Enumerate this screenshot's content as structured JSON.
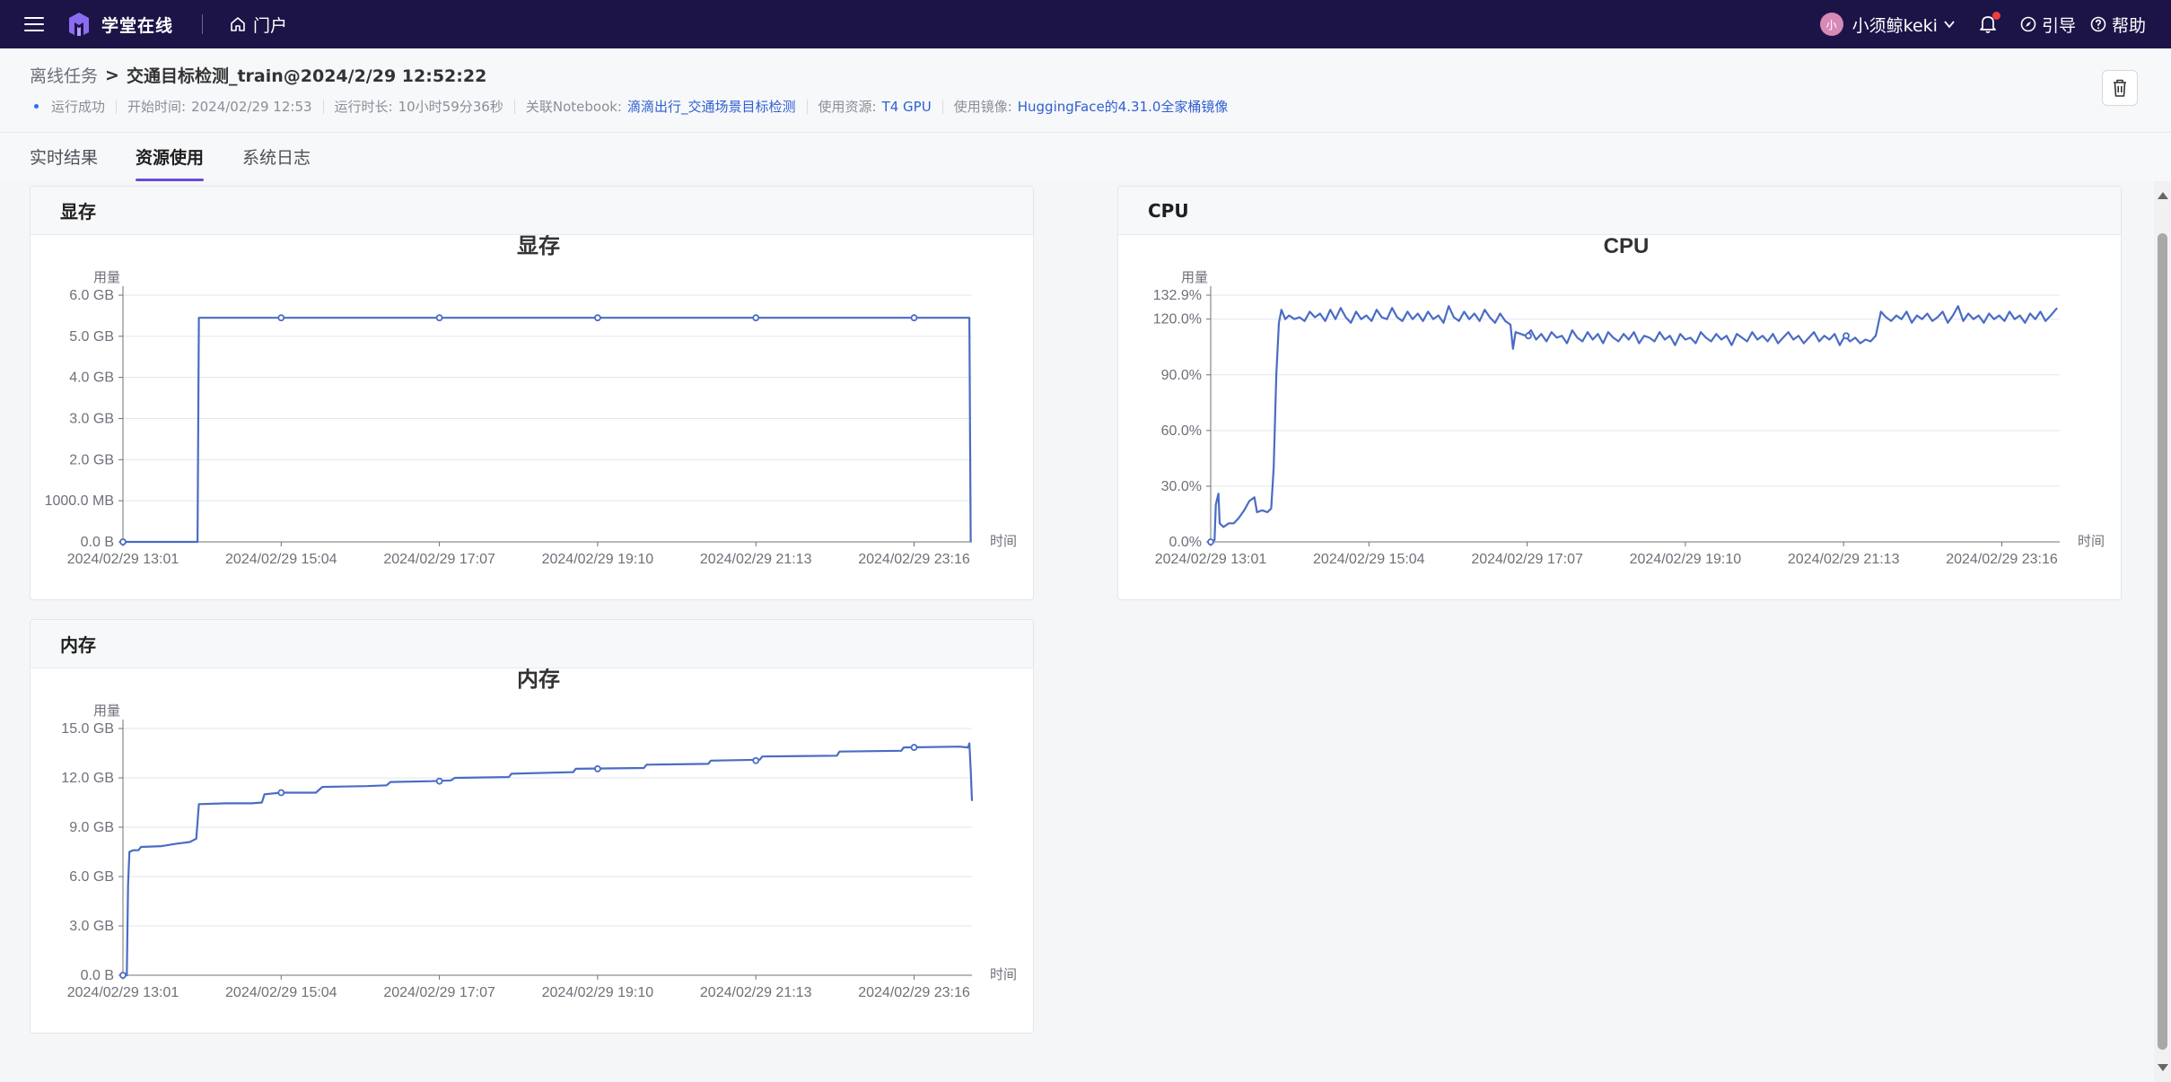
{
  "topbar": {
    "logo_text": "学堂在线",
    "portal_label": "门户",
    "avatar_text": "小",
    "username": "小须鲸keki",
    "guide_label": "引导",
    "help_label": "帮助"
  },
  "breadcrumb": {
    "parent": "离线任务",
    "separator": ">",
    "current": "交通目标检测_train@2024/2/29 12:52:22"
  },
  "meta": {
    "status": "运行成功",
    "start_label": "开始时间:",
    "start_value": "2024/02/29 12:53",
    "duration_label": "运行时长:",
    "duration_value": "10小时59分36秒",
    "notebook_label": "关联Notebook:",
    "notebook_value": "滴滴出行_交通场景目标检测",
    "resource_label": "使用资源:",
    "resource_value": "T4 GPU",
    "image_label": "使用镜像:",
    "image_value": "HuggingFace的4.31.0全家桶镜像"
  },
  "tabs": [
    {
      "label": "实时结果",
      "active": false
    },
    {
      "label": "资源使用",
      "active": true
    },
    {
      "label": "系统日志",
      "active": false
    }
  ],
  "colors": {
    "line": "#4a6cc4",
    "accent": "#6a4bd8",
    "topbar": "#1c1447",
    "link": "#2f5fd0"
  },
  "chart_data": [
    {
      "id": "gpu_mem",
      "panel_title": "显存",
      "title": "显存",
      "type": "line",
      "ylabel": "用量",
      "xlabel": "时间",
      "x_ticks": [
        "2024/02/29 13:01",
        "2024/02/29 15:04",
        "2024/02/29 17:07",
        "2024/02/29 19:10",
        "2024/02/29 21:13",
        "2024/02/29 23:16"
      ],
      "x_range_minutes": [
        0,
        660
      ],
      "y_ticks": [
        {
          "value": 0,
          "label": "0.0 B"
        },
        {
          "value": 1000,
          "label": "1000.0 MB"
        },
        {
          "value": 2000,
          "label": "2.0 GB"
        },
        {
          "value": 3000,
          "label": "3.0 GB"
        },
        {
          "value": 4000,
          "label": "4.0 GB"
        },
        {
          "value": 5000,
          "label": "5.0 GB"
        },
        {
          "value": 6000,
          "label": "6.0 GB"
        }
      ],
      "ylim": [
        0,
        6000
      ],
      "unit": "MB",
      "series": [
        {
          "values": [
            [
              0,
              0
            ],
            [
              58,
              0
            ],
            [
              59,
              5450
            ],
            [
              123,
              5450
            ],
            [
              246,
              5450
            ],
            [
              369,
              5450
            ],
            [
              492,
              5450
            ],
            [
              615,
              5450
            ],
            [
              658,
              5450
            ],
            [
              659,
              0
            ]
          ]
        }
      ],
      "markers": [
        0,
        123,
        246,
        369,
        492,
        615
      ]
    },
    {
      "id": "cpu",
      "panel_title": "CPU",
      "title": "CPU",
      "type": "line",
      "ylabel": "用量",
      "xlabel": "时间",
      "x_ticks": [
        "2024/02/29 13:01",
        "2024/02/29 15:04",
        "2024/02/29 17:07",
        "2024/02/29 19:10",
        "2024/02/29 21:13",
        "2024/02/29 23:16"
      ],
      "x_range_minutes": [
        0,
        660
      ],
      "y_ticks": [
        {
          "value": 0,
          "label": "0.0%"
        },
        {
          "value": 30,
          "label": "30.0%"
        },
        {
          "value": 60,
          "label": "60.0%"
        },
        {
          "value": 90,
          "label": "90.0%"
        },
        {
          "value": 120,
          "label": "120.0%"
        },
        {
          "value": 132.9,
          "label": "132.9%"
        }
      ],
      "ylim": [
        0,
        132.9
      ],
      "series": [
        {
          "values": [
            [
              0,
              0
            ],
            [
              3,
              1
            ],
            [
              4,
              20
            ],
            [
              6,
              26
            ],
            [
              7,
              10
            ],
            [
              10,
              8
            ],
            [
              14,
              10
            ],
            [
              18,
              10
            ],
            [
              22,
              13
            ],
            [
              26,
              17
            ],
            [
              30,
              22
            ],
            [
              34,
              24
            ],
            [
              36,
              16
            ],
            [
              40,
              17
            ],
            [
              44,
              16
            ],
            [
              47,
              18
            ],
            [
              49,
              40
            ],
            [
              51,
              90
            ],
            [
              53,
              118
            ],
            [
              55,
              125
            ],
            [
              58,
              120
            ],
            [
              61,
              122
            ],
            [
              65,
              120
            ],
            [
              69,
              121
            ],
            [
              73,
              119
            ],
            [
              77,
              124
            ],
            [
              81,
              121
            ],
            [
              85,
              123
            ],
            [
              89,
              119
            ],
            [
              93,
              125
            ],
            [
              97,
              120
            ],
            [
              101,
              126
            ],
            [
              105,
              121
            ],
            [
              109,
              118
            ],
            [
              113,
              124
            ],
            [
              117,
              120
            ],
            [
              121,
              122
            ],
            [
              125,
              119
            ],
            [
              129,
              125
            ],
            [
              133,
              121
            ],
            [
              137,
              120
            ],
            [
              141,
              126
            ],
            [
              145,
              121
            ],
            [
              149,
              119
            ],
            [
              153,
              124
            ],
            [
              157,
              120
            ],
            [
              161,
              123
            ],
            [
              165,
              119
            ],
            [
              169,
              124
            ],
            [
              173,
              120
            ],
            [
              177,
              122
            ],
            [
              181,
              118
            ],
            [
              185,
              127
            ],
            [
              189,
              121
            ],
            [
              193,
              119
            ],
            [
              197,
              124
            ],
            [
              201,
              120
            ],
            [
              205,
              123
            ],
            [
              209,
              119
            ],
            [
              213,
              125
            ],
            [
              217,
              121
            ],
            [
              221,
              118
            ],
            [
              225,
              123
            ],
            [
              229,
              119
            ],
            [
              233,
              117
            ],
            [
              235,
              104
            ],
            [
              237,
              113
            ],
            [
              241,
              112
            ],
            [
              245,
              111
            ],
            [
              249,
              114
            ],
            [
              253,
              109
            ],
            [
              257,
              112
            ],
            [
              261,
              108
            ],
            [
              265,
              113
            ],
            [
              269,
              110
            ],
            [
              273,
              111
            ],
            [
              277,
              107
            ],
            [
              281,
              114
            ],
            [
              285,
              110
            ],
            [
              289,
              108
            ],
            [
              293,
              113
            ],
            [
              297,
              109
            ],
            [
              301,
              112
            ],
            [
              305,
              107
            ],
            [
              309,
              113
            ],
            [
              313,
              110
            ],
            [
              317,
              108
            ],
            [
              321,
              112
            ],
            [
              325,
              109
            ],
            [
              329,
              113
            ],
            [
              333,
              107
            ],
            [
              337,
              111
            ],
            [
              341,
              110
            ],
            [
              345,
              108
            ],
            [
              349,
              113
            ],
            [
              353,
              109
            ],
            [
              357,
              111
            ],
            [
              361,
              106
            ],
            [
              365,
              112
            ],
            [
              369,
              109
            ],
            [
              373,
              110
            ],
            [
              377,
              107
            ],
            [
              381,
              113
            ],
            [
              385,
              110
            ],
            [
              389,
              108
            ],
            [
              393,
              112
            ],
            [
              397,
              109
            ],
            [
              401,
              111
            ],
            [
              405,
              106
            ],
            [
              409,
              112
            ],
            [
              413,
              110
            ],
            [
              417,
              108
            ],
            [
              421,
              113
            ],
            [
              425,
              109
            ],
            [
              429,
              111
            ],
            [
              433,
              108
            ],
            [
              437,
              112
            ],
            [
              441,
              107
            ],
            [
              445,
              110
            ],
            [
              449,
              113
            ],
            [
              453,
              109
            ],
            [
              457,
              111
            ],
            [
              461,
              107
            ],
            [
              465,
              110
            ],
            [
              469,
              113
            ],
            [
              473,
              108
            ],
            [
              477,
              111
            ],
            [
              481,
              109
            ],
            [
              485,
              112
            ],
            [
              489,
              106
            ],
            [
              493,
              111
            ],
            [
              497,
              108
            ],
            [
              501,
              110
            ],
            [
              505,
              107
            ],
            [
              509,
              109
            ],
            [
              513,
              108
            ],
            [
              517,
              111
            ],
            [
              521,
              124
            ],
            [
              525,
              121
            ],
            [
              529,
              119
            ],
            [
              533,
              122
            ],
            [
              537,
              120
            ],
            [
              541,
              124
            ],
            [
              545,
              118
            ],
            [
              549,
              122
            ],
            [
              553,
              120
            ],
            [
              557,
              123
            ],
            [
              561,
              119
            ],
            [
              565,
              121
            ],
            [
              569,
              124
            ],
            [
              573,
              118
            ],
            [
              577,
              122
            ],
            [
              581,
              127
            ],
            [
              585,
              119
            ],
            [
              589,
              123
            ],
            [
              593,
              120
            ],
            [
              597,
              122
            ],
            [
              601,
              118
            ],
            [
              605,
              123
            ],
            [
              609,
              120
            ],
            [
              613,
              122
            ],
            [
              617,
              119
            ],
            [
              621,
              124
            ],
            [
              625,
              120
            ],
            [
              629,
              122
            ],
            [
              633,
              118
            ],
            [
              637,
              123
            ],
            [
              641,
              120
            ],
            [
              645,
              124
            ],
            [
              649,
              119
            ],
            [
              653,
              122
            ],
            [
              658,
              126
            ]
          ]
        }
      ],
      "markers": [
        0,
        247,
        494
      ]
    },
    {
      "id": "mem",
      "panel_title": "内存",
      "title": "内存",
      "type": "line",
      "ylabel": "用量",
      "xlabel": "时间",
      "x_ticks": [
        "2024/02/29 13:01",
        "2024/02/29 15:04",
        "2024/02/29 17:07",
        "2024/02/29 19:10",
        "2024/02/29 21:13",
        "2024/02/29 23:16"
      ],
      "x_range_minutes": [
        0,
        660
      ],
      "y_ticks": [
        {
          "value": 0,
          "label": "0.0 B"
        },
        {
          "value": 3,
          "label": "3.0 GB"
        },
        {
          "value": 6,
          "label": "6.0 GB"
        },
        {
          "value": 9,
          "label": "9.0 GB"
        },
        {
          "value": 12,
          "label": "12.0 GB"
        },
        {
          "value": 15,
          "label": "15.0 GB"
        }
      ],
      "ylim": [
        0,
        15
      ],
      "unit": "GB",
      "series": [
        {
          "values": [
            [
              0,
              0
            ],
            [
              3,
              0
            ],
            [
              4,
              5.5
            ],
            [
              5,
              7.5
            ],
            [
              8,
              7.6
            ],
            [
              12,
              7.6
            ],
            [
              14,
              7.8
            ],
            [
              30,
              7.85
            ],
            [
              42,
              8.0
            ],
            [
              52,
              8.1
            ],
            [
              57,
              8.3
            ],
            [
              59,
              10.4
            ],
            [
              80,
              10.45
            ],
            [
              100,
              10.45
            ],
            [
              108,
              10.5
            ],
            [
              110,
              11.0
            ],
            [
              123,
              11.1
            ],
            [
              150,
              11.1
            ],
            [
              155,
              11.45
            ],
            [
              190,
              11.5
            ],
            [
              205,
              11.55
            ],
            [
              208,
              11.75
            ],
            [
              240,
              11.8
            ],
            [
              255,
              11.85
            ],
            [
              258,
              12.0
            ],
            [
              300,
              12.05
            ],
            [
              302,
              12.25
            ],
            [
              350,
              12.35
            ],
            [
              352,
              12.55
            ],
            [
              405,
              12.6
            ],
            [
              407,
              12.8
            ],
            [
              455,
              12.85
            ],
            [
              457,
              13.05
            ],
            [
              495,
              13.1
            ],
            [
              497,
              13.3
            ],
            [
              555,
              13.35
            ],
            [
              557,
              13.6
            ],
            [
              605,
              13.65
            ],
            [
              607,
              13.85
            ],
            [
              650,
              13.9
            ],
            [
              657,
              13.85
            ],
            [
              658,
              14.1
            ],
            [
              659,
              12.5
            ],
            [
              660,
              10.6
            ]
          ]
        }
      ],
      "markers": [
        0,
        123,
        246,
        369,
        492,
        615
      ]
    }
  ]
}
